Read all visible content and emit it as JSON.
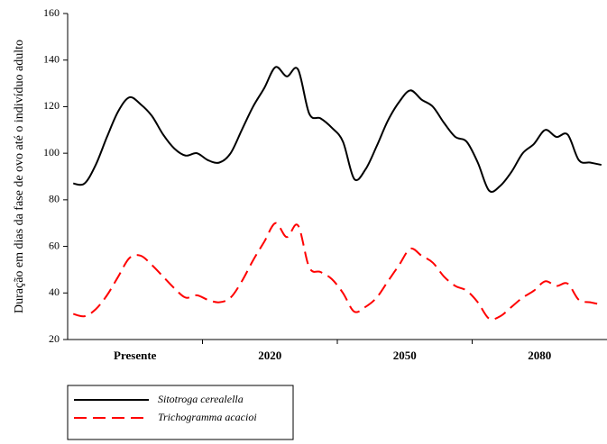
{
  "chart_data": {
    "type": "line",
    "y_label": "Duração em dias da fase de ovo até o indivíduo adulto",
    "categories": [
      null,
      null,
      null,
      null,
      null,
      "Presente",
      null,
      null,
      null,
      null,
      null,
      null,
      null,
      null,
      null,
      null,
      null,
      "2020",
      null,
      null,
      null,
      null,
      null,
      null,
      null,
      null,
      null,
      null,
      null,
      "2050",
      null,
      null,
      null,
      null,
      null,
      null,
      null,
      null,
      null,
      null,
      null,
      "2080",
      null,
      null,
      null,
      null,
      null,
      null
    ],
    "series": [
      {
        "name": "Sitotroga cerealella",
        "color": "#000000",
        "dash": false,
        "values": [
          87,
          87,
          95,
          107,
          118,
          124,
          121,
          116,
          108,
          102,
          99,
          100,
          97,
          96,
          100,
          110,
          120,
          128,
          137,
          133,
          136,
          117,
          115,
          111,
          105,
          89,
          93,
          103,
          114,
          122,
          127,
          123,
          120,
          113,
          107,
          105,
          96,
          84,
          86,
          92,
          100,
          104,
          110,
          107,
          108,
          97,
          96,
          95
        ]
      },
      {
        "name": "Trichogramma acacioi",
        "color": "#ff0000",
        "dash": true,
        "values": [
          31,
          30,
          33,
          39,
          47,
          55,
          56,
          52,
          47,
          42,
          38,
          39,
          37,
          36,
          38,
          45,
          54,
          62,
          70,
          64,
          69,
          51,
          49,
          46,
          40,
          32,
          34,
          38,
          45,
          52,
          59,
          56,
          53,
          47,
          43,
          41,
          36,
          29,
          30,
          34,
          38,
          41,
          45,
          43,
          44,
          37,
          36,
          35
        ]
      }
    ],
    "ylim": [
      20,
      160
    ],
    "yticks": [
      20,
      40,
      60,
      80,
      100,
      120,
      140,
      160
    ]
  }
}
